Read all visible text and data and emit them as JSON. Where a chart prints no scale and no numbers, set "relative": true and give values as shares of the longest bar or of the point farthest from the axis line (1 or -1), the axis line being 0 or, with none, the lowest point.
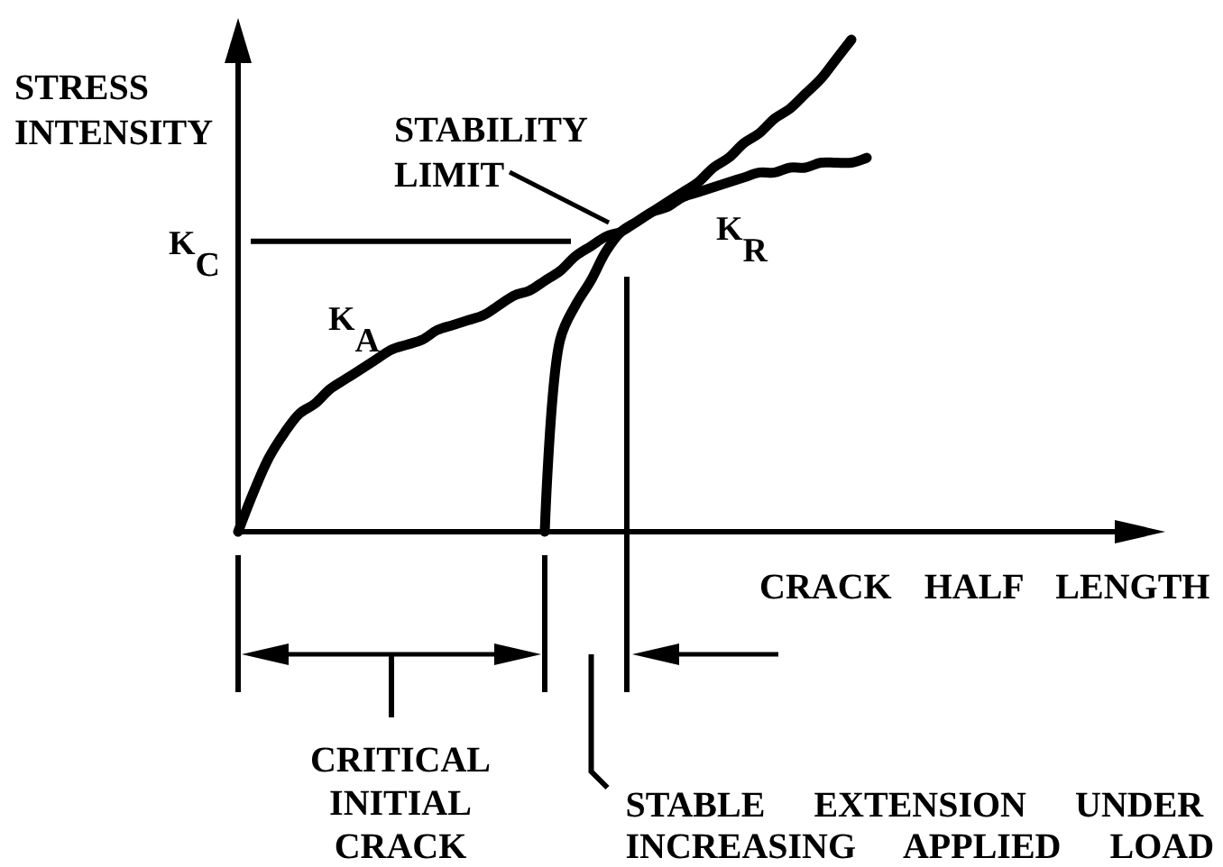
{
  "chart_data": {
    "type": "line",
    "relative": true,
    "xlabel": "CRACK HALF LENGTH",
    "ylabel": "STRESS\nINTENSITY",
    "line_style": "solid",
    "categories": [
      null,
      null,
      null,
      null,
      null,
      null,
      null,
      null,
      null,
      null,
      null,
      null,
      null,
      null,
      null,
      null,
      null,
      null,
      null,
      null,
      null,
      null,
      null,
      null,
      null,
      null,
      null,
      null,
      null,
      null,
      null,
      null,
      null,
      null,
      null,
      null,
      null,
      null,
      null,
      null,
      null,
      null
    ],
    "series": [
      {
        "name": "K$_{A}$",
        "color": "#000000",
        "values": [
          0,
          0.08,
          0.15,
          0.2,
          0.24,
          0.26,
          0.29,
          0.31,
          0.33,
          0.35,
          0.37,
          0.38,
          0.39,
          0.41,
          0.42,
          0.43,
          0.44,
          0.46,
          0.48,
          0.49,
          0.51,
          0.53,
          0.56,
          0.58,
          0.6,
          0.61,
          0.63,
          0.65,
          0.67,
          0.69,
          0.71,
          0.74,
          0.76,
          0.79,
          0.81,
          0.84,
          0.86,
          0.89,
          0.92,
          0.96,
          1,
          null
        ]
      },
      {
        "name": "K$_{R}$",
        "color": "#000000",
        "values": [
          null,
          null,
          null,
          null,
          null,
          null,
          null,
          null,
          null,
          null,
          null,
          null,
          null,
          null,
          null,
          null,
          null,
          null,
          null,
          null,
          0,
          0.39,
          0.46,
          0.51,
          0.57,
          0.61,
          0.63,
          0.65,
          0.66,
          0.68,
          0.69,
          0.7,
          0.71,
          0.72,
          0.73,
          0.73,
          0.74,
          0.74,
          0.75,
          0.75,
          0.75,
          0.76
        ]
      }
    ],
    "ref_lines": [
      {
        "axis": "y",
        "value": 0.59,
        "label": "K$_{C}$"
      }
    ],
    "annotations": [
      "STABILITY\nLIMIT",
      "CRITICAL\nINITIAL\nCRACK",
      "STABLE EXTENSION UNDER\nINCREASING APPLIED LOAD"
    ]
  }
}
